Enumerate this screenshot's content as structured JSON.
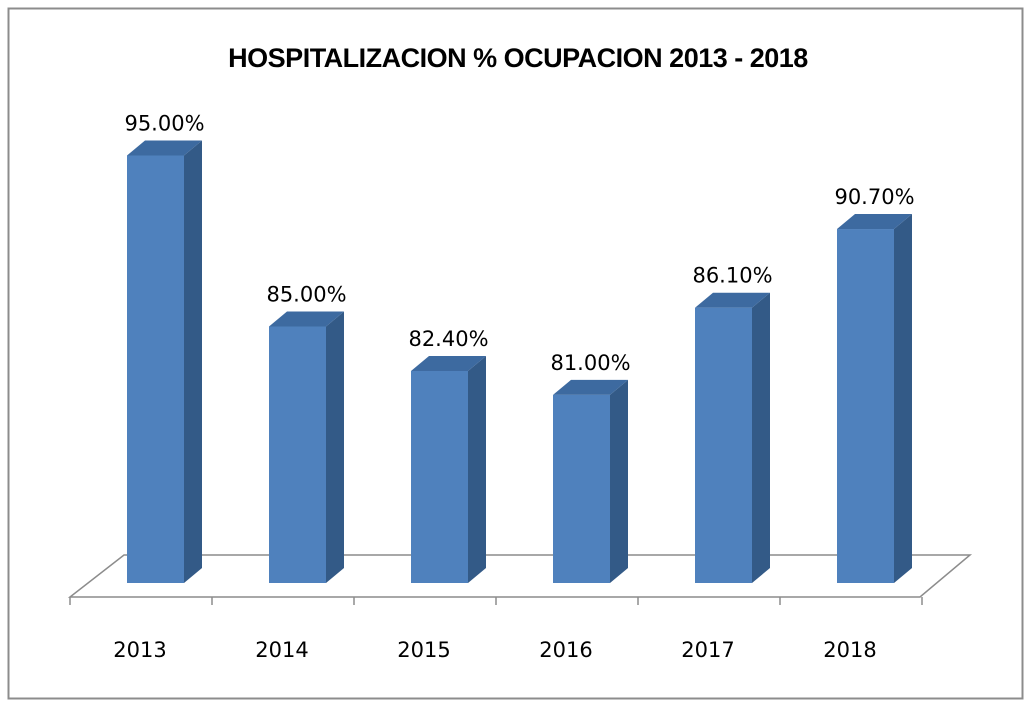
{
  "chart_data": {
    "type": "bar3d",
    "title": "HOSPITALIZACION % OCUPACION 2013 - 2018",
    "categories": [
      "2013",
      "2014",
      "2015",
      "2016",
      "2017",
      "2018"
    ],
    "values": [
      95,
      85,
      82.4,
      81,
      86.1,
      90.7
    ],
    "value_labels": [
      "95.00%",
      "85.00%",
      "82.40%",
      "81.00%",
      "86.10%",
      "90.70%"
    ],
    "color": "#4f81bd",
    "ylim": [
      70,
      100
    ]
  }
}
